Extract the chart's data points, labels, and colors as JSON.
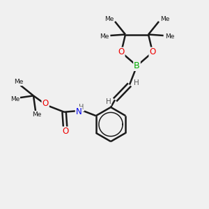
{
  "background_color": "#f0f0f0",
  "bond_color": "#1a1a1a",
  "atom_colors": {
    "B": "#00aa00",
    "O": "#ee0000",
    "N": "#0000ee",
    "H": "#555555",
    "C": "#1a1a1a"
  },
  "figsize": [
    3.0,
    3.0
  ],
  "dpi": 100,
  "xlim": [
    0,
    10
  ],
  "ylim": [
    0,
    10
  ]
}
